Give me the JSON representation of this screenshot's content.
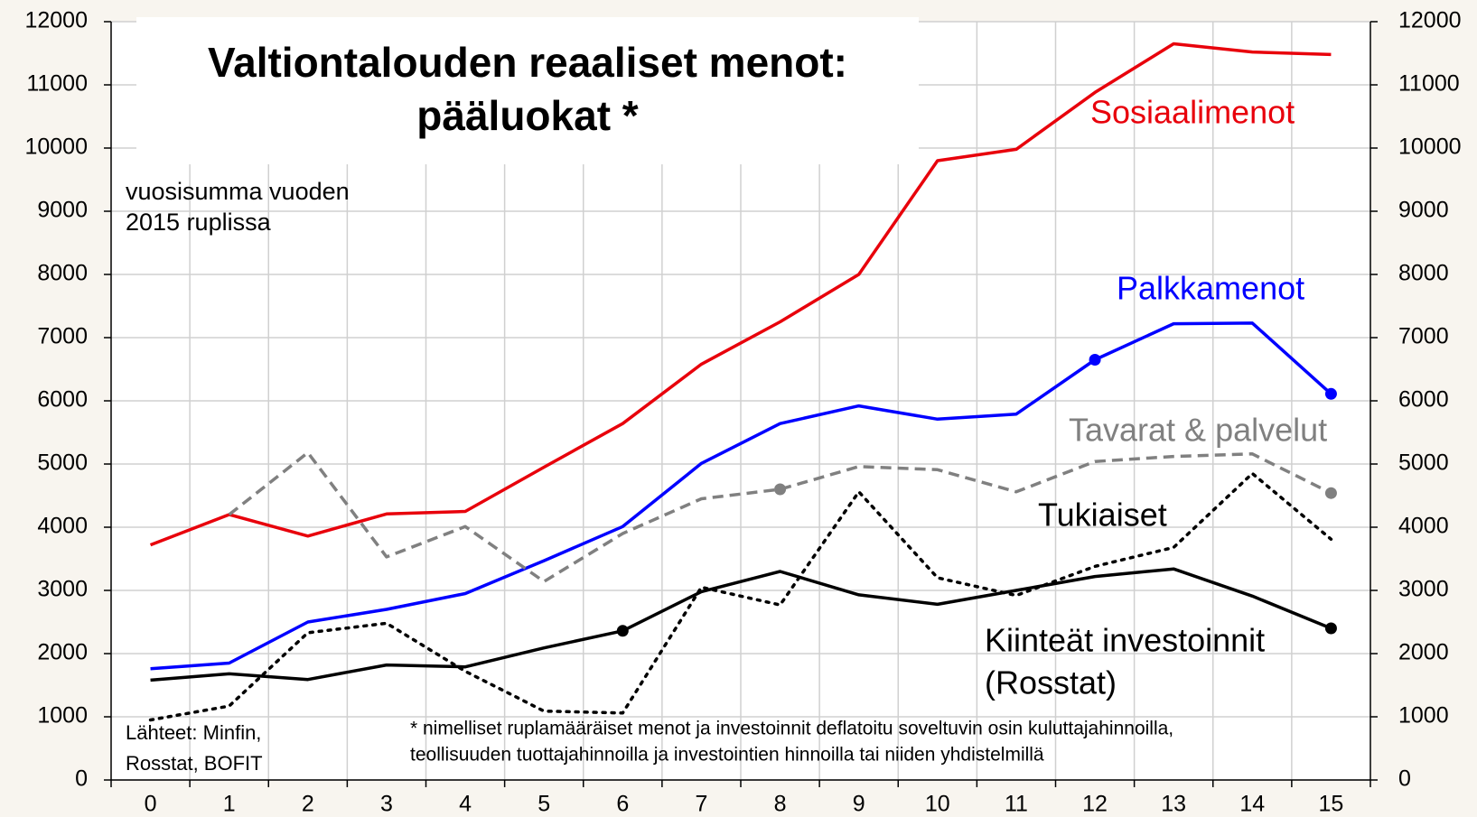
{
  "chart_data": {
    "type": "line",
    "title": [
      "Valtiontalouden reaaliset menot:",
      "pääluokat *"
    ],
    "subtitle": [
      "vuosisumma vuoden",
      "2015 ruplissa"
    ],
    "sources": [
      "Lähteet: Minfin,",
      "Rosstat, BOFIT"
    ],
    "note": [
      "* nimelliset ruplamääräiset menot ja investoinnit deflatoitu soveltuvin osin kuluttajahinnoilla,",
      "teollisuuden tuottajahinnoilla ja investointien hinnoilla tai niiden yhdistelmillä"
    ],
    "categories": [
      "0",
      "1",
      "2",
      "3",
      "4",
      "5",
      "6",
      "7",
      "8",
      "9",
      "10",
      "11",
      "12",
      "13",
      "14",
      "15"
    ],
    "ylim": [
      0,
      12000
    ],
    "yticks": [
      0,
      1000,
      2000,
      3000,
      4000,
      5000,
      6000,
      7000,
      8000,
      9000,
      10000,
      11000,
      12000
    ],
    "y2lim": [
      0,
      12000
    ],
    "y2ticks": [
      0,
      1000,
      2000,
      3000,
      4000,
      5000,
      6000,
      7000,
      8000,
      9000,
      10000,
      11000,
      12000
    ],
    "grid": true,
    "series": [
      {
        "name": "Sosiaalimenot",
        "color": "#e8000b",
        "dash": "solid",
        "values": [
          3720,
          4200,
          3860,
          4210,
          4250,
          4950,
          5640,
          6580,
          7250,
          8000,
          9800,
          9980,
          10880,
          11650,
          11520,
          11480
        ],
        "markers": []
      },
      {
        "name": "Palkkamenot",
        "color": "#0000ff",
        "dash": "solid",
        "values": [
          1760,
          1850,
          2500,
          2700,
          2950,
          3470,
          4010,
          5010,
          5640,
          5920,
          5710,
          5790,
          6650,
          7220,
          7230,
          6110
        ],
        "markers": [
          12,
          15
        ]
      },
      {
        "name": "Tavarat & palvelut",
        "color": "#808080",
        "dash": "dashed",
        "values": [
          null,
          4200,
          5180,
          3530,
          4010,
          3140,
          3900,
          4450,
          4600,
          4960,
          4910,
          4560,
          5040,
          5120,
          5160,
          4540
        ],
        "markers": [
          8,
          15
        ]
      },
      {
        "name": "Tukiaiset",
        "color": "#000000",
        "dash": "dotted",
        "values": [
          950,
          1170,
          2330,
          2480,
          1720,
          1090,
          1060,
          3050,
          2770,
          4560,
          3200,
          2920,
          3380,
          3680,
          4850,
          3810
        ],
        "markers": []
      },
      {
        "name": "Kiinteät investoinnit",
        "name_suffix": "(Rosstat)",
        "color": "#000000",
        "dash": "solid",
        "values": [
          1580,
          1680,
          1590,
          1820,
          1790,
          2090,
          2360,
          2980,
          3300,
          2930,
          2780,
          3000,
          3220,
          3340,
          2910,
          2400
        ],
        "markers": [
          6,
          15
        ]
      }
    ]
  }
}
